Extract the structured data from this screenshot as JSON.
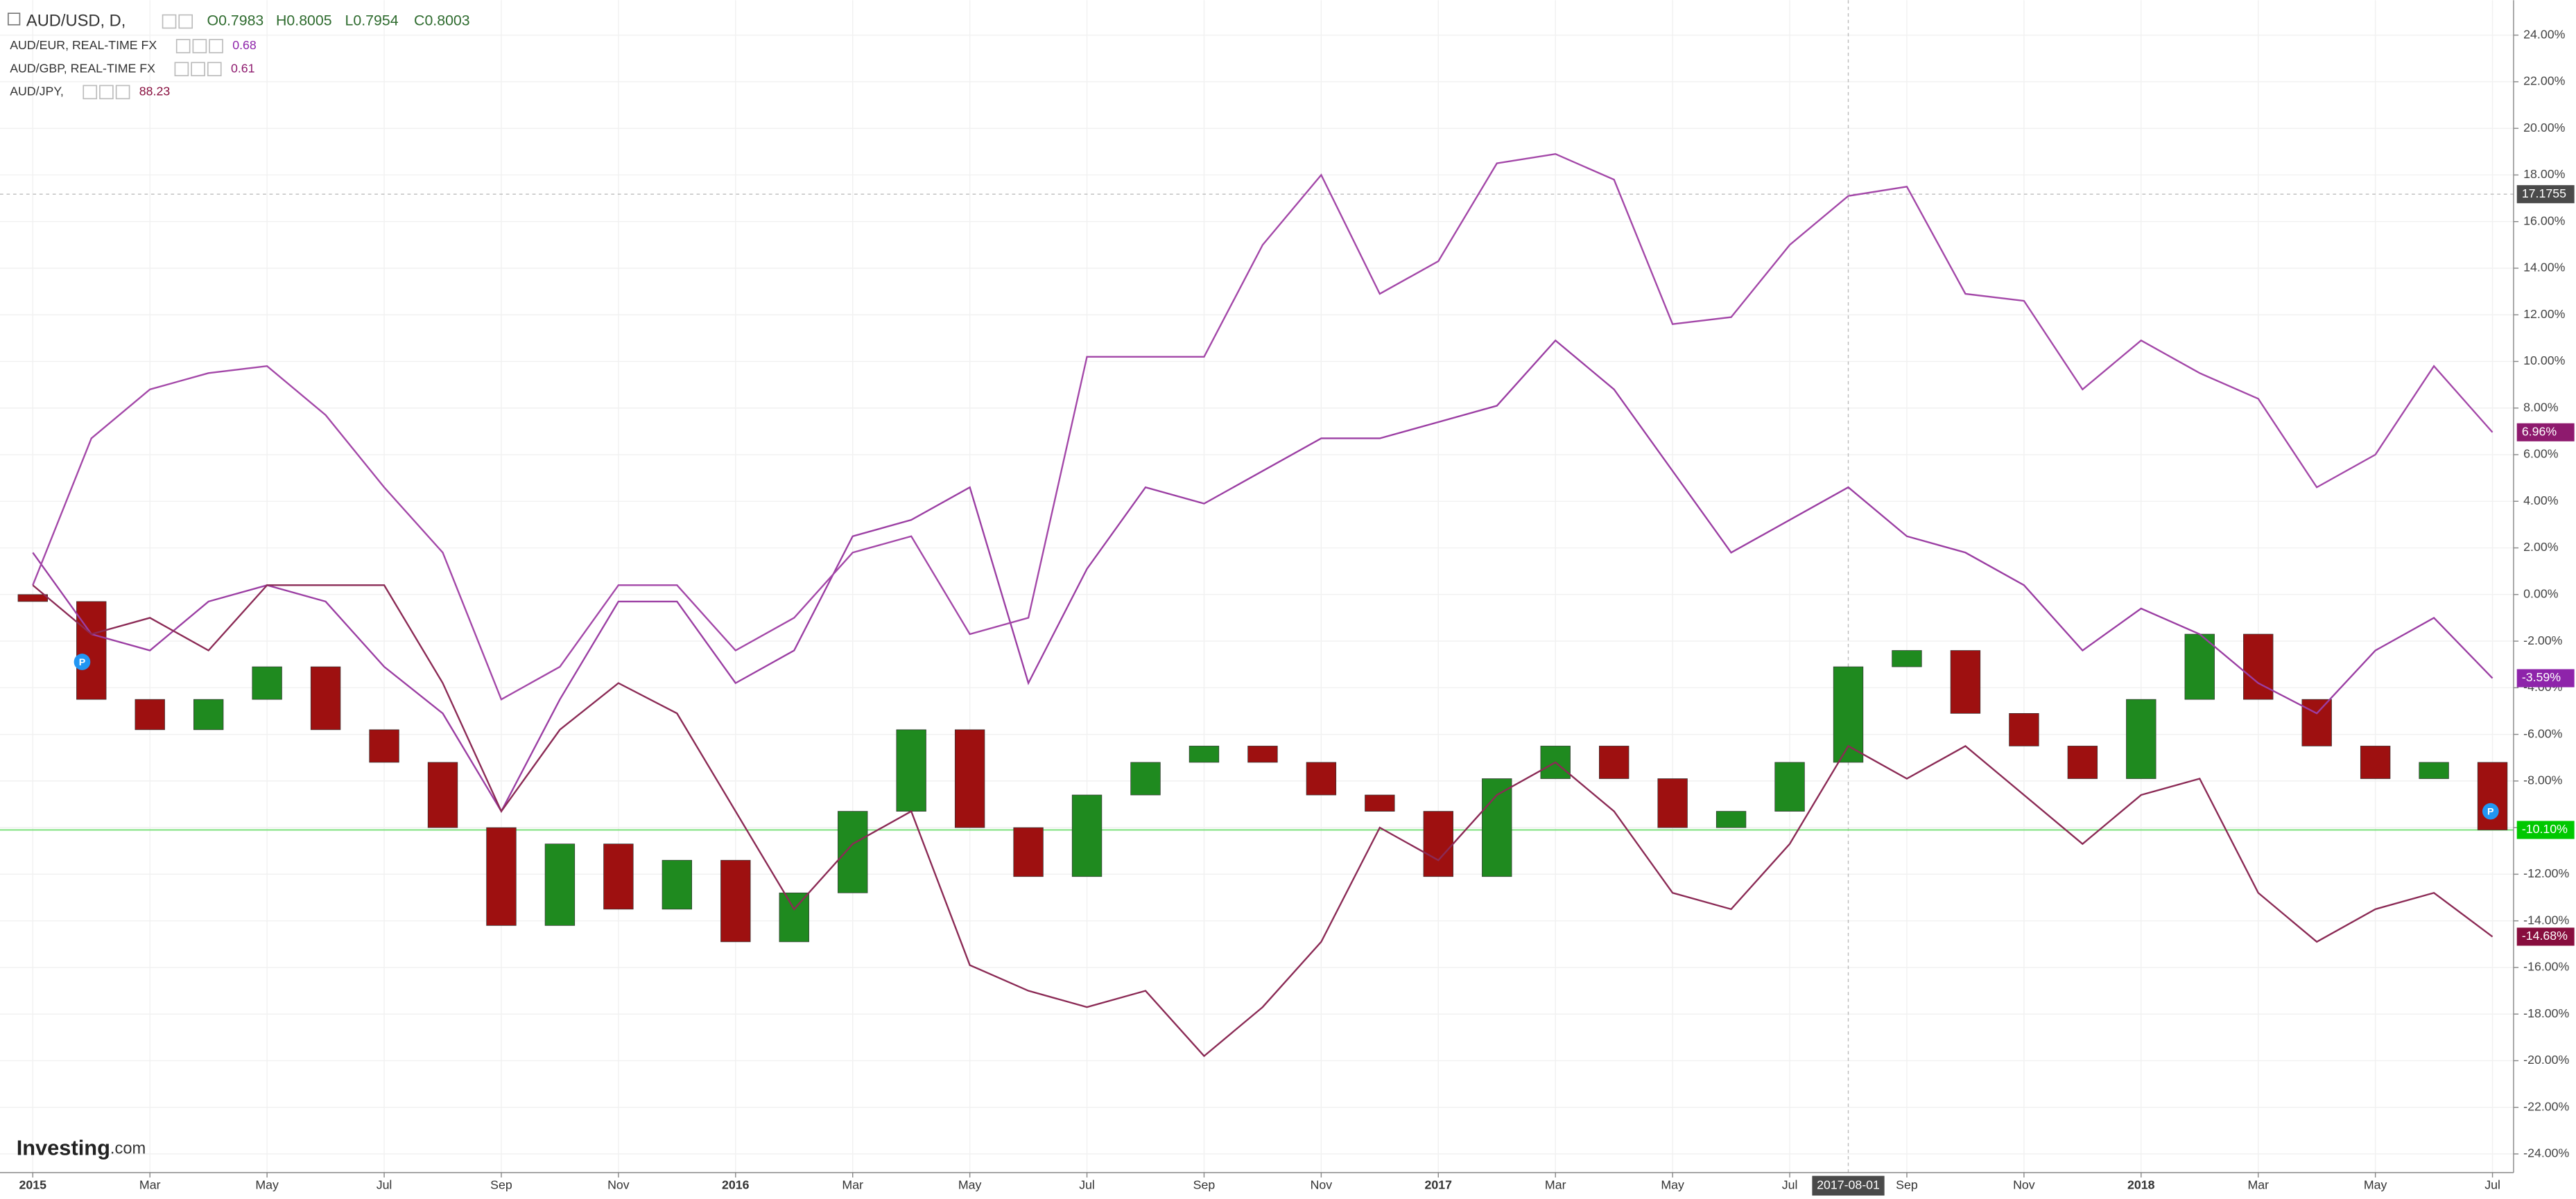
{
  "chart_data": {
    "type": "line",
    "header": {
      "symbol": "AUD/USD, D,",
      "ohlc": [
        "O0.7983",
        "H0.8005",
        "L0.7954",
        "C0.8003"
      ]
    },
    "x": [
      0,
      1,
      2,
      3,
      4,
      5,
      6,
      7,
      8,
      9,
      10,
      11,
      12,
      13,
      14,
      15,
      16,
      17,
      18,
      19,
      20,
      21,
      22,
      23,
      24,
      25,
      26,
      27,
      28,
      29,
      30,
      31,
      32,
      33,
      34,
      35,
      36,
      37,
      38,
      39,
      40,
      41,
      42
    ],
    "series": [
      {
        "name": "AUD/USD",
        "type": "candlestick",
        "up_color": "#1f8a1f",
        "down_color": "#9e1010",
        "label_color": "#00c800",
        "last_value_label": "-10.10%",
        "open": [
          0,
          -0.3,
          -4.5,
          -5.8,
          -4.5,
          -3.1,
          -5.8,
          -7.2,
          -10,
          -14.2,
          -10.7,
          -13.5,
          -11.4,
          -14.9,
          -12.8,
          -9.3,
          -5.8,
          -10,
          -12.1,
          -8.6,
          -7.2,
          -6.5,
          -7.2,
          -8.6,
          -9.3,
          -12.1,
          -7.9,
          -6.5,
          -7.9,
          -10,
          -9.3,
          -7.2,
          -3.1,
          -2.4,
          -5.1,
          -6.5,
          -7.9,
          -4.5,
          -1.7,
          -4.5,
          -6.5,
          -7.9,
          -7.2
        ],
        "values": [
          -0.3,
          -4.5,
          -5.8,
          -4.5,
          -3.1,
          -5.8,
          -7.2,
          -10,
          -14.2,
          -10.7,
          -13.5,
          -11.4,
          -14.9,
          -12.8,
          -9.3,
          -5.8,
          -10,
          -12.1,
          -8.6,
          -7.2,
          -6.5,
          -7.2,
          -8.6,
          -9.3,
          -12.1,
          -7.9,
          -6.5,
          -7.9,
          -10,
          -9.3,
          -7.2,
          -3.1,
          -2.4,
          -5.1,
          -6.5,
          -7.9,
          -4.5,
          -1.7,
          -4.5,
          -6.5,
          -7.9,
          -7.2,
          -10.1
        ]
      },
      {
        "name": "AUD/EUR, REAL-TIME FX",
        "quote": "0.68",
        "color": "#9b3ea3",
        "label_color": "#8e24aa",
        "last_value_label": "-3.59%",
        "values": [
          1.8,
          -1.7,
          -2.4,
          -0.3,
          0.4,
          -0.3,
          -3.1,
          -5.1,
          -9.3,
          -4.5,
          -0.3,
          -0.3,
          -3.8,
          -2.4,
          2.5,
          3.2,
          4.6,
          -3.8,
          1.1,
          4.6,
          3.9,
          5.3,
          6.7,
          6.7,
          7.4,
          8.1,
          10.9,
          8.8,
          5.3,
          1.8,
          3.2,
          4.6,
          2.5,
          1.8,
          0.4,
          -2.4,
          -0.6,
          -1.7,
          -3.8,
          -5.1,
          -2.4,
          -1,
          -3.59
        ]
      },
      {
        "name": "AUD/GBP, REAL-TIME FX",
        "quote": "0.61",
        "color": "#a347a8",
        "label_color": "#8e1a6e",
        "last_value_label": "6.96%",
        "values": [
          0.4,
          6.7,
          8.8,
          9.5,
          9.8,
          7.7,
          4.6,
          1.8,
          -4.5,
          -3.1,
          0.4,
          0.4,
          -2.4,
          -1,
          1.8,
          2.5,
          -1.7,
          -1,
          10.2,
          10.2,
          10.2,
          15,
          18,
          12.9,
          14.3,
          18.5,
          18.9,
          17.8,
          11.6,
          11.9,
          15,
          17.1,
          17.5,
          12.9,
          12.6,
          8.8,
          10.9,
          9.5,
          8.4,
          4.6,
          6,
          9.8,
          6.96
        ]
      },
      {
        "name": "AUD/JPY,",
        "quote": "88.23",
        "color": "#8b2a55",
        "label_color": "#880e3e",
        "last_value_label": "-14.68%",
        "values": [
          0.4,
          -1.7,
          -1,
          -2.4,
          0.4,
          0.4,
          0.4,
          -3.8,
          -9.3,
          -5.8,
          -3.8,
          -5.1,
          -9.3,
          -13.5,
          -10.7,
          -9.3,
          -15.9,
          -17,
          -17.7,
          -17,
          -19.8,
          -17.7,
          -14.9,
          -10,
          -11.4,
          -8.6,
          -7.2,
          -9.3,
          -12.8,
          -13.5,
          -10.7,
          -6.5,
          -7.9,
          -6.5,
          -8.6,
          -10.7,
          -8.6,
          -7.9,
          -12.8,
          -14.9,
          -13.5,
          -12.8,
          -14.68
        ]
      }
    ],
    "xlim": [
      -0.56,
      42.36
    ],
    "ylim": [
      -24.8,
      25.5
    ],
    "xticks": [
      {
        "value": 0,
        "label": "2015"
      },
      {
        "value": 2,
        "label": "Mar"
      },
      {
        "value": 4,
        "label": "May"
      },
      {
        "value": 6,
        "label": "Jul"
      },
      {
        "value": 8,
        "label": "Sep"
      },
      {
        "value": 10,
        "label": "Nov"
      },
      {
        "value": 12,
        "label": "2016"
      },
      {
        "value": 14,
        "label": "Mar"
      },
      {
        "value": 16,
        "label": "May"
      },
      {
        "value": 18,
        "label": "Jul"
      },
      {
        "value": 20,
        "label": "Sep"
      },
      {
        "value": 22,
        "label": "Nov"
      },
      {
        "value": 24,
        "label": "2017"
      },
      {
        "value": 26,
        "label": "Mar"
      },
      {
        "value": 28,
        "label": "May"
      },
      {
        "value": 30,
        "label": "Jul"
      },
      {
        "value": 32,
        "label": "Sep"
      },
      {
        "value": 34,
        "label": "Nov"
      },
      {
        "value": 36,
        "label": "2018"
      },
      {
        "value": 38,
        "label": "Mar"
      },
      {
        "value": 40,
        "label": "May"
      },
      {
        "value": 42,
        "label": "Jul"
      }
    ],
    "yticks": [
      {
        "value": 24,
        "label": "24.00%"
      },
      {
        "value": 22,
        "label": "22.00%"
      },
      {
        "value": 20,
        "label": "20.00%"
      },
      {
        "value": 18,
        "label": "18.00%"
      },
      {
        "value": 16,
        "label": "16.00%"
      },
      {
        "value": 14,
        "label": "14.00%"
      },
      {
        "value": 12,
        "label": "12.00%"
      },
      {
        "value": 10,
        "label": "10.00%"
      },
      {
        "value": 8,
        "label": "8.00%"
      },
      {
        "value": 6,
        "label": "6.00%"
      },
      {
        "value": 4,
        "label": "4.00%"
      },
      {
        "value": 2,
        "label": "2.00%"
      },
      {
        "value": 0,
        "label": "0.00%"
      },
      {
        "value": -2,
        "label": "-2.00%"
      },
      {
        "value": -4,
        "label": "-4.00%"
      },
      {
        "value": -6,
        "label": "-6.00%"
      },
      {
        "value": -8,
        "label": "-8.00%"
      },
      {
        "value": -10,
        "label": "-10.00%"
      },
      {
        "value": -12,
        "label": "-12.00%"
      },
      {
        "value": -14,
        "label": "-14.00%"
      },
      {
        "value": -16,
        "label": "-16.00%"
      },
      {
        "value": -18,
        "label": "-18.00%"
      },
      {
        "value": -20,
        "label": "-20.00%"
      },
      {
        "value": -22,
        "label": "-22.00%"
      },
      {
        "value": -24,
        "label": "-24.00%"
      }
    ],
    "grid": true,
    "crosshair": {
      "x": 31,
      "x_label": "2017-08-01",
      "y": 17.1755
    },
    "logo": "Investing",
    "logo_suffix": ".com"
  }
}
